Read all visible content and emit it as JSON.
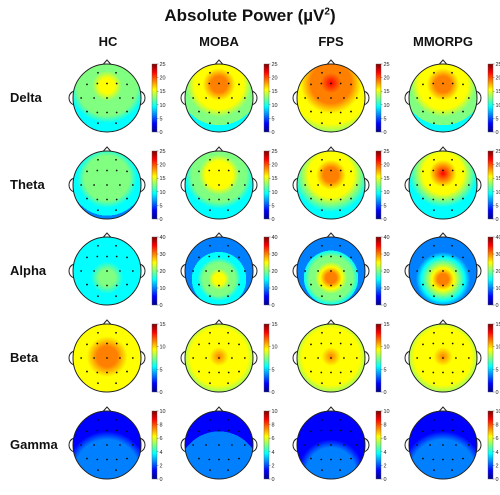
{
  "title": {
    "main": "Absolute Power (µV",
    "sup": "2",
    "close": ")"
  },
  "groups": [
    "HC",
    "MOBA",
    "FPS",
    "MMORPG"
  ],
  "bands": [
    {
      "name": "Delta",
      "scale_ticks": [
        "0",
        "5",
        "10",
        "15",
        "20",
        "25"
      ],
      "max": 25
    },
    {
      "name": "Theta",
      "scale_ticks": [
        "0",
        "5",
        "10",
        "15",
        "20",
        "25"
      ],
      "max": 25
    },
    {
      "name": "Alpha",
      "scale_ticks": [
        "0",
        "10",
        "20",
        "30",
        "40"
      ],
      "max": 40
    },
    {
      "name": "Beta",
      "scale_ticks": [
        "0",
        "5",
        "10",
        "15"
      ],
      "max": 15
    },
    {
      "name": "Gamma",
      "scale_ticks": [
        "0",
        "2",
        "4",
        "6",
        "8",
        "10"
      ],
      "max": 10
    }
  ],
  "colors": {
    "colormap": [
      "#00008f",
      "#0000ff",
      "#0080ff",
      "#00ffff",
      "#80ff80",
      "#ffff00",
      "#ff8000",
      "#ff0000",
      "#800000"
    ]
  }
}
